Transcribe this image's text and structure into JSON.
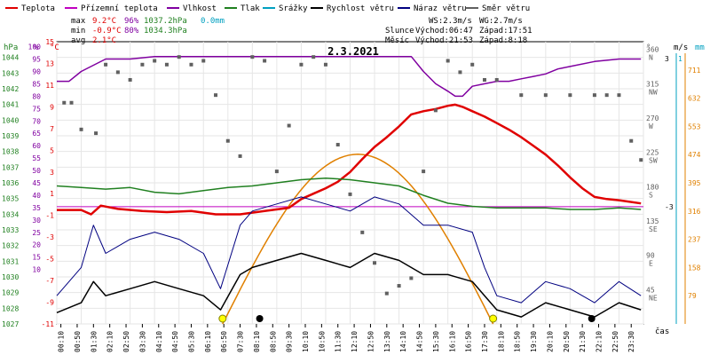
{
  "legend": [
    {
      "label": "Teplota",
      "color": "#e00000"
    },
    {
      "label": "Přízemní teplota",
      "color": "#c000c0"
    },
    {
      "label": "Vlhkost",
      "color": "#8000a0"
    },
    {
      "label": "Tlak",
      "color": "#208020"
    },
    {
      "label": "Srážky",
      "color": "#00a0c0"
    },
    {
      "label": "Rychlost větru",
      "color": "#000000"
    },
    {
      "label": "Náraz větru",
      "color": "#000080"
    },
    {
      "label": "Směr větru",
      "color": "#606060"
    }
  ],
  "stats": {
    "max_label": "max",
    "max_temp": "9.2°C",
    "max_hum": "96%",
    "max_press": "1037.2hPa",
    "max_rain": "0.0mm",
    "min_label": "min",
    "min_temp": "-0.9°C",
    "min_hum": "80%",
    "min_press": "1034.3hPa",
    "avg_label": "avg",
    "avg_temp": "2.1°C"
  },
  "astro": {
    "ws": "WS:2.3m/s",
    "wg": "WG:2.7m/s",
    "sun_label": "Slunce",
    "sun_rise": "Východ:06:47",
    "sun_set": "Západ:17:51",
    "moon_label": "Měsíc",
    "moon_rise": "Východ:21:53",
    "moon_set": "Západ:8:18"
  },
  "colors": {
    "temp": "#e00000",
    "hum": "#8000a0",
    "press": "#208020",
    "wind": "#000000",
    "gust": "#000080",
    "dir": "#606060",
    "sun": "#e08000",
    "ground": "#c000c0",
    "rain": "#00a0c0"
  },
  "chart_data": {
    "type": "line",
    "title": "2.3.2021",
    "xlabel": "čas",
    "x_ticks": [
      "00:10",
      "00:50",
      "01:30",
      "02:10",
      "02:50",
      "03:30",
      "04:10",
      "04:50",
      "05:30",
      "06:10",
      "06:50",
      "07:30",
      "08:10",
      "08:50",
      "09:30",
      "10:10",
      "10:50",
      "11:30",
      "12:10",
      "12:50",
      "13:30",
      "14:10",
      "14:50",
      "15:30",
      "16:10",
      "16:50",
      "17:30",
      "18:10",
      "18:50",
      "19:30",
      "20:10",
      "20:50",
      "21:30",
      "22:10",
      "22:50",
      "23:30"
    ],
    "axes": {
      "pressure": {
        "unit": "hPa",
        "ylim": [
          1027,
          1045
        ],
        "ticks": [
          1044,
          1043,
          1042,
          1041,
          1040,
          1039,
          1038,
          1037,
          1036,
          1035,
          1034,
          1033,
          1032,
          1031,
          1030,
          1029,
          1028,
          1027
        ]
      },
      "humidity": {
        "unit": "%",
        "ylim": [
          -12,
          102
        ],
        "ticks": [
          100,
          95,
          90,
          85,
          80,
          75,
          70,
          65,
          60,
          55,
          50,
          45,
          40,
          35,
          30,
          25,
          20,
          15,
          10
        ]
      },
      "temperature": {
        "unit": "°C",
        "ylim": [
          -11,
          15
        ],
        "ticks": [
          15,
          13,
          11,
          9,
          7,
          5,
          3,
          1,
          -1,
          -3,
          -5,
          -7,
          -9,
          -11
        ]
      },
      "wind_direction": {
        "unit": "°",
        "ticks": [
          "360 N",
          "315 NW",
          "270 W",
          "225 SW",
          "180 S",
          "135 SE",
          "90 E",
          "45 NE"
        ]
      },
      "wind_speed": {
        "unit": "m/s",
        "ticks": [
          3,
          -3
        ]
      },
      "rain": {
        "unit": "mm",
        "ticks": [
          1
        ]
      },
      "solar": {
        "ticks": [
          711,
          632,
          553,
          474,
          395,
          316,
          237,
          158,
          79
        ]
      }
    },
    "series": [
      {
        "name": "Teplota",
        "unit": "°C",
        "x": [
          0,
          1,
          1.4,
          1.8,
          2.5,
          3.5,
          4.5,
          5.5,
          6.5,
          7.5,
          8.5,
          9.5,
          10,
          10.5,
          11,
          11.5,
          12,
          12.5,
          13,
          13.5,
          14,
          14.5,
          15,
          15.5,
          16,
          16.3,
          16.6,
          17,
          17.5,
          18,
          18.5,
          19,
          19.5,
          20,
          20.5,
          21,
          21.5,
          22,
          22.5,
          23,
          23.9
        ],
        "y": [
          -0.5,
          -0.5,
          -0.9,
          -0.1,
          -0.4,
          -0.6,
          -0.7,
          -0.6,
          -0.9,
          -0.9,
          -0.6,
          -0.3,
          0.5,
          1.0,
          1.5,
          2.1,
          3.0,
          4.2,
          5.3,
          6.2,
          7.2,
          8.3,
          8.6,
          8.8,
          9.1,
          9.2,
          9.0,
          8.6,
          8.1,
          7.5,
          6.9,
          6.2,
          5.4,
          4.6,
          3.6,
          2.5,
          1.5,
          0.7,
          0.5,
          0.4,
          0.1
        ]
      },
      {
        "name": "Vlhkost",
        "unit": "%",
        "x": [
          0,
          0.5,
          1,
          2,
          3,
          4,
          5,
          6,
          7,
          8,
          9,
          10,
          11,
          12,
          13,
          14,
          14.5,
          15,
          15.5,
          16,
          16.3,
          16.6,
          17,
          17.5,
          18,
          18.5,
          19,
          19.5,
          20,
          20.5,
          21,
          22,
          23,
          23.9
        ],
        "y": [
          86,
          86,
          90,
          95,
          95,
          96,
          96,
          96,
          96,
          96,
          96,
          96,
          96,
          96,
          96,
          96,
          96,
          90,
          85,
          82,
          80,
          80,
          84,
          85,
          86,
          86,
          87,
          88,
          89,
          91,
          92,
          94,
          95,
          95
        ]
      },
      {
        "name": "Tlak",
        "unit": "hPa",
        "x": [
          0,
          1,
          2,
          3,
          4,
          5,
          6,
          7,
          8,
          9,
          10,
          11,
          12,
          13,
          14,
          15,
          16,
          17,
          18,
          19,
          20,
          21,
          22,
          23,
          23.9
        ],
        "y": [
          1035.8,
          1035.7,
          1035.6,
          1035.7,
          1035.4,
          1035.3,
          1035.5,
          1035.7,
          1035.8,
          1036.0,
          1036.2,
          1036.3,
          1036.2,
          1036.0,
          1035.8,
          1035.2,
          1034.7,
          1034.5,
          1034.4,
          1034.4,
          1034.4,
          1034.3,
          1034.3,
          1034.4,
          1034.3
        ]
      },
      {
        "name": "Směr větru",
        "unit": "°",
        "x": [
          0.3,
          0.6,
          1,
          1.6,
          2,
          2.5,
          3,
          3.5,
          4,
          4.5,
          5,
          5.5,
          6,
          6.5,
          7,
          7.5,
          8,
          8.5,
          9,
          9.5,
          10,
          10.5,
          11,
          11.5,
          12,
          12.5,
          13,
          13.5,
          14,
          14.5,
          15,
          15.5,
          16,
          16.5,
          17,
          17.5,
          18,
          19,
          20,
          21,
          22,
          22.5,
          23,
          23.5,
          23.9
        ],
        "y": [
          290,
          290,
          255,
          250,
          340,
          330,
          320,
          340,
          345,
          340,
          350,
          340,
          345,
          300,
          240,
          220,
          350,
          345,
          200,
          260,
          340,
          350,
          340,
          235,
          170,
          120,
          80,
          40,
          50,
          60,
          200,
          280,
          345,
          330,
          340,
          320,
          320,
          300,
          300,
          300,
          300,
          300,
          300,
          240,
          215
        ]
      },
      {
        "name": "Rychlost větru",
        "unit": "m/s",
        "x": [
          0,
          1,
          1.5,
          2,
          3,
          4,
          5,
          6,
          6.7,
          7.5,
          8,
          9,
          10,
          11,
          12,
          13,
          14,
          15,
          16,
          17,
          17.5,
          18,
          19,
          20,
          21,
          22,
          23,
          23.9
        ],
        "y": [
          0.8,
          1.5,
          3.0,
          2.0,
          2.5,
          3.0,
          2.5,
          2.0,
          1.0,
          3.5,
          4.0,
          4.5,
          5.0,
          4.5,
          4.0,
          5.0,
          4.5,
          3.5,
          3.5,
          3.0,
          2.0,
          1.0,
          0.5,
          1.5,
          1.0,
          0.5,
          1.5,
          1.0
        ]
      },
      {
        "name": "Náraz větru",
        "unit": "m/s",
        "x": [
          0,
          1,
          1.5,
          2,
          3,
          4,
          5,
          6,
          6.7,
          7.5,
          8,
          9,
          10,
          11,
          12,
          13,
          14,
          15,
          16,
          17,
          17.5,
          18,
          19,
          20,
          21,
          22,
          23,
          23.9
        ],
        "y": [
          2.0,
          4.0,
          7.0,
          5.0,
          6.0,
          6.5,
          6.0,
          5.0,
          2.5,
          7.0,
          8.0,
          8.5,
          9.0,
          8.5,
          8.0,
          9.0,
          8.5,
          7.0,
          7.0,
          6.5,
          4.0,
          2.0,
          1.5,
          3.0,
          2.5,
          1.5,
          3.0,
          2.0
        ]
      }
    ],
    "annotations": {
      "sunrise": "06:47",
      "sunset": "17:51",
      "moonrise": "21:53",
      "moonset": "8:18",
      "max_solar": 475
    },
    "grid": true,
    "legend_position": "top"
  }
}
